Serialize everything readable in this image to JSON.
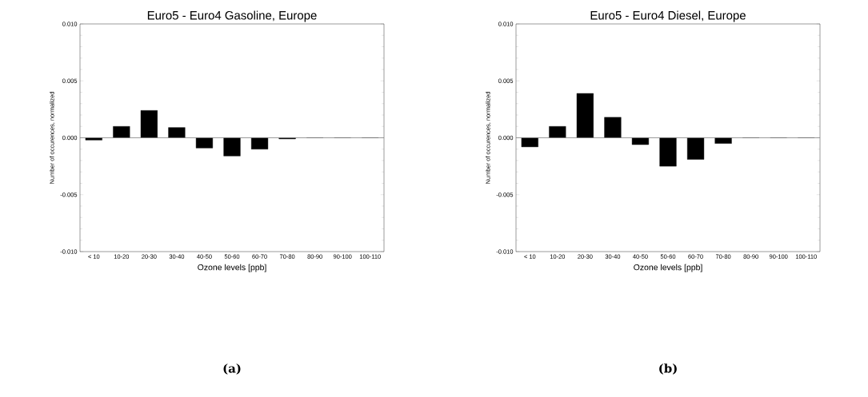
{
  "chart_data": [
    {
      "type": "bar",
      "title": "Euro5 - Euro4 Gasoline, Europe",
      "xlabel": "Ozone levels [ppb]",
      "ylabel": "Number of occurences, normalized",
      "categories": [
        "< 10",
        "10-20",
        "20-30",
        "30-40",
        "40-50",
        "50-60",
        "60-70",
        "70-80",
        "80-90",
        "90-100",
        "100-110"
      ],
      "values": [
        -0.0002,
        0.001,
        0.0024,
        0.0009,
        -0.0009,
        -0.0016,
        -0.001,
        -0.0001,
        0,
        0,
        0
      ],
      "color": "#000000",
      "ylim": [
        -0.01,
        0.01
      ],
      "yticks": [
        {
          "value": -0.01,
          "label": "-0.010"
        },
        {
          "value": -0.005,
          "label": "-0.005"
        },
        {
          "value": 0,
          "label": "0.000"
        },
        {
          "value": 0.005,
          "label": "0.005"
        },
        {
          "value": 0.01,
          "label": "0.010"
        }
      ],
      "ref_lines": [
        {
          "axis": "y",
          "value": 0,
          "color": "#808080"
        }
      ],
      "annotations": [
        "(a)"
      ]
    },
    {
      "type": "bar",
      "title": "Euro5 - Euro4 Diesel, Europe",
      "xlabel": "Ozone levels [ppb]",
      "ylabel": "Number of occurences, normalized",
      "categories": [
        "< 10",
        "10-20",
        "20-30",
        "30-40",
        "40-50",
        "50-60",
        "60-70",
        "70-80",
        "80-90",
        "90-100",
        "100-110"
      ],
      "values": [
        -0.0008,
        0.001,
        0.0039,
        0.0018,
        -0.0006,
        -0.0025,
        -0.0019,
        -0.0005,
        0,
        0,
        0
      ],
      "color": "#000000",
      "ylim": [
        -0.01,
        0.01
      ],
      "yticks": [
        {
          "value": -0.01,
          "label": "-0.010"
        },
        {
          "value": -0.005,
          "label": "-0.005"
        },
        {
          "value": 0,
          "label": "0.000"
        },
        {
          "value": 0.005,
          "label": "0.005"
        },
        {
          "value": 0.01,
          "label": "0.010"
        }
      ],
      "ref_lines": [
        {
          "axis": "y",
          "value": 0,
          "color": "#808080"
        }
      ],
      "annotations": [
        "(b)"
      ]
    }
  ]
}
